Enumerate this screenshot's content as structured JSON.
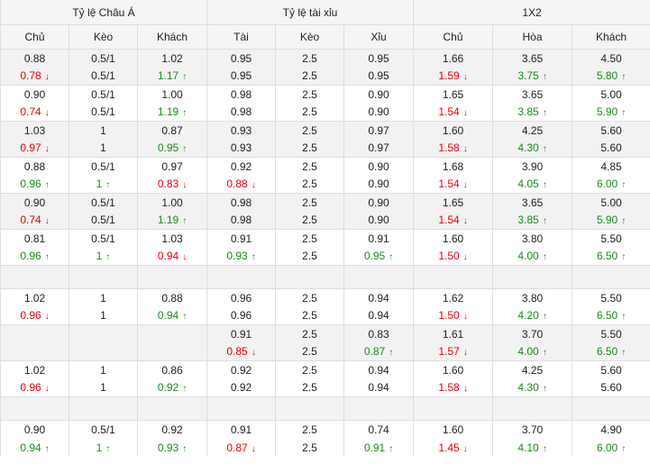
{
  "headers": {
    "groups": [
      "Tỷ lệ Châu Á",
      "Tỷ lệ tài xỉu",
      "1X2"
    ],
    "columns": [
      "Chủ",
      "Kèo",
      "Khách",
      "Tài",
      "Kèo",
      "Xỉu",
      "Chủ",
      "Hòa",
      "Khách"
    ]
  },
  "colors": {
    "up": "#1a8a1a",
    "down": "#e8000b",
    "border": "#dedede",
    "header_bg": "#f5f5f5",
    "alt_row_bg": "#f2f2f2"
  },
  "rows": [
    {
      "type": "pair",
      "bg": "grey",
      "lines": [
        [
          [
            "0.88",
            ""
          ],
          [
            "0.5/1",
            ""
          ],
          [
            "1.02",
            ""
          ],
          [
            "0.95",
            ""
          ],
          [
            "2.5",
            ""
          ],
          [
            "0.95",
            ""
          ],
          [
            "1.66",
            ""
          ],
          [
            "3.65",
            ""
          ],
          [
            "4.50",
            ""
          ]
        ],
        [
          [
            "0.78",
            "down"
          ],
          [
            "0.5/1",
            ""
          ],
          [
            "1.17",
            "up"
          ],
          [
            "0.95",
            ""
          ],
          [
            "2.5",
            ""
          ],
          [
            "0.95",
            ""
          ],
          [
            "1.59",
            "down"
          ],
          [
            "3.75",
            "up"
          ],
          [
            "5.80",
            "up"
          ]
        ]
      ]
    },
    {
      "type": "pair",
      "bg": "white",
      "lines": [
        [
          [
            "0.90",
            ""
          ],
          [
            "0.5/1",
            ""
          ],
          [
            "1.00",
            ""
          ],
          [
            "0.98",
            ""
          ],
          [
            "2.5",
            ""
          ],
          [
            "0.90",
            ""
          ],
          [
            "1.65",
            ""
          ],
          [
            "3.65",
            ""
          ],
          [
            "5.00",
            ""
          ]
        ],
        [
          [
            "0.74",
            "down"
          ],
          [
            "0.5/1",
            ""
          ],
          [
            "1.19",
            "up"
          ],
          [
            "0.98",
            ""
          ],
          [
            "2.5",
            ""
          ],
          [
            "0.90",
            ""
          ],
          [
            "1.54",
            "down"
          ],
          [
            "3.85",
            "up"
          ],
          [
            "5.90",
            "up"
          ]
        ]
      ]
    },
    {
      "type": "pair",
      "bg": "grey",
      "lines": [
        [
          [
            "1.03",
            ""
          ],
          [
            "1",
            ""
          ],
          [
            "0.87",
            ""
          ],
          [
            "0.93",
            ""
          ],
          [
            "2.5",
            ""
          ],
          [
            "0.97",
            ""
          ],
          [
            "1.60",
            ""
          ],
          [
            "4.25",
            ""
          ],
          [
            "5.60",
            ""
          ]
        ],
        [
          [
            "0.97",
            "down"
          ],
          [
            "1",
            ""
          ],
          [
            "0.95",
            "up"
          ],
          [
            "0.93",
            ""
          ],
          [
            "2.5",
            ""
          ],
          [
            "0.97",
            ""
          ],
          [
            "1.58",
            "down"
          ],
          [
            "4.30",
            "up"
          ],
          [
            "5.60",
            ""
          ]
        ]
      ]
    },
    {
      "type": "pair",
      "bg": "white",
      "lines": [
        [
          [
            "0.88",
            ""
          ],
          [
            "0.5/1",
            ""
          ],
          [
            "0.97",
            ""
          ],
          [
            "0.92",
            ""
          ],
          [
            "2.5",
            ""
          ],
          [
            "0.90",
            ""
          ],
          [
            "1.68",
            ""
          ],
          [
            "3.90",
            ""
          ],
          [
            "4.85",
            ""
          ]
        ],
        [
          [
            "0.96",
            "up"
          ],
          [
            "1",
            "up"
          ],
          [
            "0.83",
            "down"
          ],
          [
            "0.88",
            "down"
          ],
          [
            "2.5",
            ""
          ],
          [
            "0.90",
            ""
          ],
          [
            "1.54",
            "down"
          ],
          [
            "4.05",
            "up"
          ],
          [
            "6.00",
            "up"
          ]
        ]
      ]
    },
    {
      "type": "pair",
      "bg": "grey",
      "lines": [
        [
          [
            "0.90",
            ""
          ],
          [
            "0.5/1",
            ""
          ],
          [
            "1.00",
            ""
          ],
          [
            "0.98",
            ""
          ],
          [
            "2.5",
            ""
          ],
          [
            "0.90",
            ""
          ],
          [
            "1.65",
            ""
          ],
          [
            "3.65",
            ""
          ],
          [
            "5.00",
            ""
          ]
        ],
        [
          [
            "0.74",
            "down"
          ],
          [
            "0.5/1",
            ""
          ],
          [
            "1.19",
            "up"
          ],
          [
            "0.98",
            ""
          ],
          [
            "2.5",
            ""
          ],
          [
            "0.90",
            ""
          ],
          [
            "1.54",
            "down"
          ],
          [
            "3.85",
            "up"
          ],
          [
            "5.90",
            "up"
          ]
        ]
      ]
    },
    {
      "type": "pair",
      "bg": "white",
      "lines": [
        [
          [
            "0.81",
            ""
          ],
          [
            "0.5/1",
            ""
          ],
          [
            "1.03",
            ""
          ],
          [
            "0.91",
            ""
          ],
          [
            "2.5",
            ""
          ],
          [
            "0.91",
            ""
          ],
          [
            "1.60",
            ""
          ],
          [
            "3.80",
            ""
          ],
          [
            "5.50",
            ""
          ]
        ],
        [
          [
            "0.96",
            "up"
          ],
          [
            "1",
            "up"
          ],
          [
            "0.94",
            "down"
          ],
          [
            "0.93",
            "up"
          ],
          [
            "2.5",
            ""
          ],
          [
            "0.95",
            "up"
          ],
          [
            "1.50",
            "down"
          ],
          [
            "4.00",
            "up"
          ],
          [
            "6.50",
            "up"
          ]
        ]
      ]
    },
    {
      "type": "gap",
      "bg": "grey"
    },
    {
      "type": "pair",
      "bg": "white",
      "lines": [
        [
          [
            "1.02",
            ""
          ],
          [
            "1",
            ""
          ],
          [
            "0.88",
            ""
          ],
          [
            "0.96",
            ""
          ],
          [
            "2.5",
            ""
          ],
          [
            "0.94",
            ""
          ],
          [
            "1.62",
            ""
          ],
          [
            "3.80",
            ""
          ],
          [
            "5.50",
            ""
          ]
        ],
        [
          [
            "0.96",
            "down"
          ],
          [
            "1",
            ""
          ],
          [
            "0.94",
            "up"
          ],
          [
            "0.96",
            ""
          ],
          [
            "2.5",
            ""
          ],
          [
            "0.94",
            ""
          ],
          [
            "1.50",
            "down"
          ],
          [
            "4.20",
            "up"
          ],
          [
            "6.50",
            "up"
          ]
        ]
      ]
    },
    {
      "type": "pair",
      "bg": "grey",
      "lines": [
        [
          [
            "",
            ""
          ],
          [
            "",
            ""
          ],
          [
            "",
            ""
          ],
          [
            "0.91",
            ""
          ],
          [
            "2.5",
            ""
          ],
          [
            "0.83",
            ""
          ],
          [
            "1.61",
            ""
          ],
          [
            "3.70",
            ""
          ],
          [
            "5.50",
            ""
          ]
        ],
        [
          [
            "",
            ""
          ],
          [
            "",
            ""
          ],
          [
            "",
            ""
          ],
          [
            "0.85",
            "down"
          ],
          [
            "2.5",
            ""
          ],
          [
            "0.87",
            "up"
          ],
          [
            "1.57",
            "down"
          ],
          [
            "4.00",
            "up"
          ],
          [
            "6.50",
            "up"
          ]
        ]
      ]
    },
    {
      "type": "pair",
      "bg": "white",
      "lines": [
        [
          [
            "1.02",
            ""
          ],
          [
            "1",
            ""
          ],
          [
            "0.86",
            ""
          ],
          [
            "0.92",
            ""
          ],
          [
            "2.5",
            ""
          ],
          [
            "0.94",
            ""
          ],
          [
            "1.60",
            ""
          ],
          [
            "4.25",
            ""
          ],
          [
            "5.60",
            ""
          ]
        ],
        [
          [
            "0.96",
            "down"
          ],
          [
            "1",
            ""
          ],
          [
            "0.92",
            "up"
          ],
          [
            "0.92",
            ""
          ],
          [
            "2.5",
            ""
          ],
          [
            "0.94",
            ""
          ],
          [
            "1.58",
            "down"
          ],
          [
            "4.30",
            "up"
          ],
          [
            "5.60",
            ""
          ]
        ]
      ]
    },
    {
      "type": "gap",
      "bg": "grey"
    },
    {
      "type": "pair",
      "bg": "white",
      "lines": [
        [
          [
            "0.90",
            ""
          ],
          [
            "0.5/1",
            ""
          ],
          [
            "0.92",
            ""
          ],
          [
            "0.91",
            ""
          ],
          [
            "2.5",
            ""
          ],
          [
            "0.74",
            ""
          ],
          [
            "1.60",
            ""
          ],
          [
            "3.70",
            ""
          ],
          [
            "4.90",
            ""
          ]
        ],
        [
          [
            "0.94",
            "up"
          ],
          [
            "1",
            "up"
          ],
          [
            "0.93",
            "up"
          ],
          [
            "0.87",
            "down"
          ],
          [
            "2.5",
            ""
          ],
          [
            "0.91",
            "up"
          ],
          [
            "1.45",
            "down"
          ],
          [
            "4.10",
            "up"
          ],
          [
            "6.00",
            "up"
          ]
        ]
      ]
    }
  ]
}
